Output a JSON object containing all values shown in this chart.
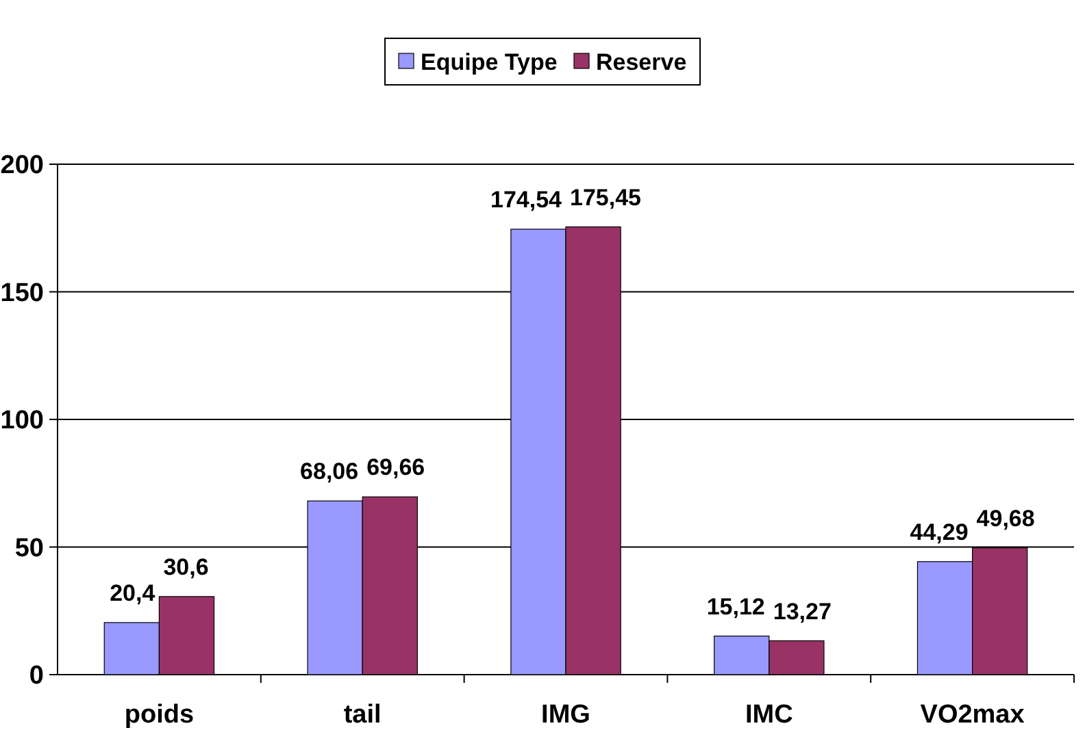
{
  "chart_data": {
    "type": "bar",
    "categories": [
      "poids",
      "tail",
      "IMG",
      "IMC",
      "VO2max"
    ],
    "series": [
      {
        "name": "Equipe Type",
        "color": "#9999ff",
        "values": [
          20.4,
          68.06,
          174.54,
          15.12,
          44.29
        ],
        "value_labels": [
          "20,4",
          "68,06",
          "174,54",
          "15,12",
          "44,29"
        ]
      },
      {
        "name": "Reserve",
        "color": "#993366",
        "values": [
          30.6,
          69.66,
          175.45,
          13.27,
          49.68
        ],
        "value_labels": [
          "30,6",
          "69,66",
          "175,45",
          "13,27",
          "49,68"
        ]
      }
    ],
    "ylim": [
      0,
      200
    ],
    "yticks": [
      0,
      50,
      100,
      150,
      200
    ],
    "grid": "y",
    "legend": "top"
  }
}
